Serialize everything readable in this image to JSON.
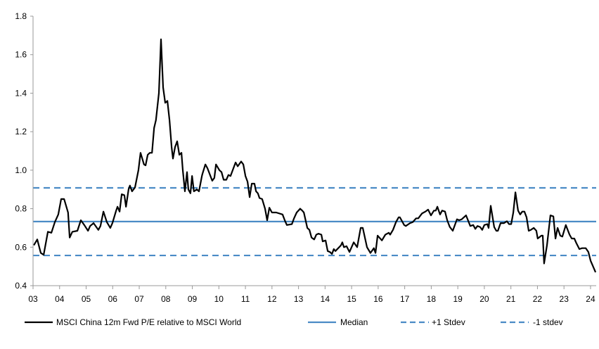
{
  "chart_data": {
    "type": "line",
    "title": "",
    "xlabel": "",
    "ylabel": "",
    "xlim": [
      2003,
      2024.2
    ],
    "ylim": [
      0.4,
      1.8
    ],
    "yticks": [
      "0.4",
      "0.6",
      "0.8",
      "1.0",
      "1.2",
      "1.4",
      "1.6",
      "1.8"
    ],
    "xticks": [
      "03",
      "04",
      "05",
      "06",
      "07",
      "08",
      "09",
      "10",
      "11",
      "12",
      "13",
      "14",
      "15",
      "16",
      "17",
      "18",
      "19",
      "20",
      "21",
      "22",
      "23",
      "24"
    ],
    "grid": false,
    "legend_placement": "bottom",
    "series": [
      {
        "name": "MSCI China 12m Fwd P/E relative to MSCI World",
        "color": "#000000",
        "style": "solid",
        "points": [
          [
            2003.03,
            0.61
          ],
          [
            2003.16,
            0.64
          ],
          [
            2003.29,
            0.57
          ],
          [
            2003.4,
            0.56
          ],
          [
            2003.56,
            0.68
          ],
          [
            2003.69,
            0.675
          ],
          [
            2003.82,
            0.73
          ],
          [
            2003.95,
            0.77
          ],
          [
            2004.06,
            0.85
          ],
          [
            2004.17,
            0.85
          ],
          [
            2004.32,
            0.78
          ],
          [
            2004.38,
            0.65
          ],
          [
            2004.48,
            0.68
          ],
          [
            2004.67,
            0.685
          ],
          [
            2004.8,
            0.74
          ],
          [
            2004.93,
            0.715
          ],
          [
            2005.07,
            0.685
          ],
          [
            2005.15,
            0.71
          ],
          [
            2005.28,
            0.725
          ],
          [
            2005.46,
            0.69
          ],
          [
            2005.54,
            0.71
          ],
          [
            2005.65,
            0.785
          ],
          [
            2005.78,
            0.73
          ],
          [
            2005.91,
            0.7
          ],
          [
            2005.99,
            0.725
          ],
          [
            2006.13,
            0.79
          ],
          [
            2006.18,
            0.81
          ],
          [
            2006.26,
            0.785
          ],
          [
            2006.34,
            0.875
          ],
          [
            2006.44,
            0.87
          ],
          [
            2006.5,
            0.81
          ],
          [
            2006.6,
            0.9
          ],
          [
            2006.65,
            0.92
          ],
          [
            2006.73,
            0.89
          ],
          [
            2006.84,
            0.91
          ],
          [
            2006.97,
            1.0
          ],
          [
            2007.05,
            1.09
          ],
          [
            2007.18,
            1.03
          ],
          [
            2007.24,
            1.025
          ],
          [
            2007.32,
            1.08
          ],
          [
            2007.4,
            1.09
          ],
          [
            2007.48,
            1.09
          ],
          [
            2007.56,
            1.22
          ],
          [
            2007.63,
            1.26
          ],
          [
            2007.74,
            1.4
          ],
          [
            2007.82,
            1.68
          ],
          [
            2007.9,
            1.43
          ],
          [
            2007.98,
            1.35
          ],
          [
            2008.06,
            1.36
          ],
          [
            2008.14,
            1.26
          ],
          [
            2008.22,
            1.12
          ],
          [
            2008.27,
            1.06
          ],
          [
            2008.35,
            1.12
          ],
          [
            2008.43,
            1.15
          ],
          [
            2008.51,
            1.08
          ],
          [
            2008.59,
            1.09
          ],
          [
            2008.64,
            1.0
          ],
          [
            2008.72,
            0.89
          ],
          [
            2008.8,
            0.99
          ],
          [
            2008.85,
            0.9
          ],
          [
            2008.93,
            0.88
          ],
          [
            2008.99,
            0.97
          ],
          [
            2009.06,
            0.89
          ],
          [
            2009.17,
            0.9
          ],
          [
            2009.25,
            0.89
          ],
          [
            2009.36,
            0.97
          ],
          [
            2009.38,
            0.98
          ],
          [
            2009.49,
            1.03
          ],
          [
            2009.57,
            1.01
          ],
          [
            2009.75,
            0.945
          ],
          [
            2009.83,
            0.96
          ],
          [
            2009.89,
            1.03
          ],
          [
            2010.02,
            1.0
          ],
          [
            2010.1,
            0.99
          ],
          [
            2010.18,
            0.95
          ],
          [
            2010.28,
            0.95
          ],
          [
            2010.36,
            0.975
          ],
          [
            2010.44,
            0.97
          ],
          [
            2010.63,
            1.04
          ],
          [
            2010.71,
            1.02
          ],
          [
            2010.84,
            1.045
          ],
          [
            2010.92,
            1.03
          ],
          [
            2011.0,
            0.97
          ],
          [
            2011.08,
            0.94
          ],
          [
            2011.16,
            0.86
          ],
          [
            2011.24,
            0.93
          ],
          [
            2011.34,
            0.93
          ],
          [
            2011.4,
            0.89
          ],
          [
            2011.47,
            0.88
          ],
          [
            2011.53,
            0.855
          ],
          [
            2011.63,
            0.85
          ],
          [
            2011.74,
            0.8
          ],
          [
            2011.82,
            0.74
          ],
          [
            2011.9,
            0.805
          ],
          [
            2012.0,
            0.78
          ],
          [
            2012.16,
            0.78
          ],
          [
            2012.4,
            0.77
          ],
          [
            2012.48,
            0.74
          ],
          [
            2012.56,
            0.715
          ],
          [
            2012.75,
            0.72
          ],
          [
            2012.83,
            0.75
          ],
          [
            2012.93,
            0.78
          ],
          [
            2013.06,
            0.8
          ],
          [
            2013.14,
            0.79
          ],
          [
            2013.2,
            0.78
          ],
          [
            2013.33,
            0.7
          ],
          [
            2013.41,
            0.69
          ],
          [
            2013.49,
            0.65
          ],
          [
            2013.59,
            0.64
          ],
          [
            2013.67,
            0.665
          ],
          [
            2013.75,
            0.67
          ],
          [
            2013.86,
            0.665
          ],
          [
            2013.91,
            0.63
          ],
          [
            2014.02,
            0.635
          ],
          [
            2014.1,
            0.58
          ],
          [
            2014.18,
            0.575
          ],
          [
            2014.26,
            0.565
          ],
          [
            2014.33,
            0.59
          ],
          [
            2014.39,
            0.58
          ],
          [
            2014.6,
            0.61
          ],
          [
            2014.65,
            0.625
          ],
          [
            2014.71,
            0.6
          ],
          [
            2014.81,
            0.605
          ],
          [
            2014.92,
            0.575
          ],
          [
            2015.08,
            0.625
          ],
          [
            2015.21,
            0.6
          ],
          [
            2015.34,
            0.7
          ],
          [
            2015.42,
            0.7
          ],
          [
            2015.58,
            0.6
          ],
          [
            2015.71,
            0.57
          ],
          [
            2015.84,
            0.595
          ],
          [
            2015.9,
            0.57
          ],
          [
            2015.98,
            0.66
          ],
          [
            2016.14,
            0.635
          ],
          [
            2016.27,
            0.665
          ],
          [
            2016.4,
            0.675
          ],
          [
            2016.45,
            0.665
          ],
          [
            2016.56,
            0.69
          ],
          [
            2016.67,
            0.73
          ],
          [
            2016.77,
            0.755
          ],
          [
            2016.82,
            0.755
          ],
          [
            2016.98,
            0.715
          ],
          [
            2017.04,
            0.71
          ],
          [
            2017.2,
            0.725
          ],
          [
            2017.3,
            0.73
          ],
          [
            2017.43,
            0.75
          ],
          [
            2017.51,
            0.75
          ],
          [
            2017.65,
            0.775
          ],
          [
            2017.78,
            0.785
          ],
          [
            2017.88,
            0.795
          ],
          [
            2017.99,
            0.765
          ],
          [
            2018.1,
            0.79
          ],
          [
            2018.17,
            0.79
          ],
          [
            2018.23,
            0.81
          ],
          [
            2018.33,
            0.77
          ],
          [
            2018.41,
            0.79
          ],
          [
            2018.52,
            0.785
          ],
          [
            2018.6,
            0.74
          ],
          [
            2018.7,
            0.705
          ],
          [
            2018.81,
            0.685
          ],
          [
            2018.97,
            0.745
          ],
          [
            2019.05,
            0.74
          ],
          [
            2019.15,
            0.745
          ],
          [
            2019.31,
            0.765
          ],
          [
            2019.47,
            0.71
          ],
          [
            2019.58,
            0.715
          ],
          [
            2019.66,
            0.695
          ],
          [
            2019.74,
            0.71
          ],
          [
            2019.84,
            0.705
          ],
          [
            2019.92,
            0.69
          ],
          [
            2020.0,
            0.715
          ],
          [
            2020.11,
            0.72
          ],
          [
            2020.16,
            0.7
          ],
          [
            2020.24,
            0.815
          ],
          [
            2020.37,
            0.705
          ],
          [
            2020.45,
            0.685
          ],
          [
            2020.51,
            0.685
          ],
          [
            2020.61,
            0.725
          ],
          [
            2020.74,
            0.725
          ],
          [
            2020.85,
            0.735
          ],
          [
            2020.93,
            0.72
          ],
          [
            2021.01,
            0.72
          ],
          [
            2021.09,
            0.78
          ],
          [
            2021.17,
            0.885
          ],
          [
            2021.27,
            0.79
          ],
          [
            2021.35,
            0.77
          ],
          [
            2021.43,
            0.785
          ],
          [
            2021.51,
            0.785
          ],
          [
            2021.59,
            0.755
          ],
          [
            2021.67,
            0.685
          ],
          [
            2021.75,
            0.69
          ],
          [
            2021.86,
            0.7
          ],
          [
            2021.96,
            0.685
          ],
          [
            2022.01,
            0.645
          ],
          [
            2022.15,
            0.66
          ],
          [
            2022.2,
            0.66
          ],
          [
            2022.25,
            0.515
          ],
          [
            2022.36,
            0.61
          ],
          [
            2022.49,
            0.765
          ],
          [
            2022.6,
            0.76
          ],
          [
            2022.68,
            0.645
          ],
          [
            2022.76,
            0.7
          ],
          [
            2022.86,
            0.66
          ],
          [
            2022.94,
            0.655
          ],
          [
            2023.07,
            0.715
          ],
          [
            2023.21,
            0.665
          ],
          [
            2023.29,
            0.645
          ],
          [
            2023.39,
            0.645
          ],
          [
            2023.47,
            0.62
          ],
          [
            2023.58,
            0.59
          ],
          [
            2023.68,
            0.595
          ],
          [
            2023.82,
            0.595
          ],
          [
            2023.92,
            0.575
          ],
          [
            2024.0,
            0.53
          ],
          [
            2024.19,
            0.47
          ]
        ]
      },
      {
        "name": "Median",
        "color": "#4a8bc6",
        "style": "solid",
        "value": 0.733
      },
      {
        "name": "+1 Stdev",
        "color": "#4a8bc6",
        "style": "dashed",
        "value": 0.908
      },
      {
        "name": "-1 stdev",
        "color": "#4a8bc6",
        "style": "dashed",
        "value": 0.557
      }
    ]
  }
}
